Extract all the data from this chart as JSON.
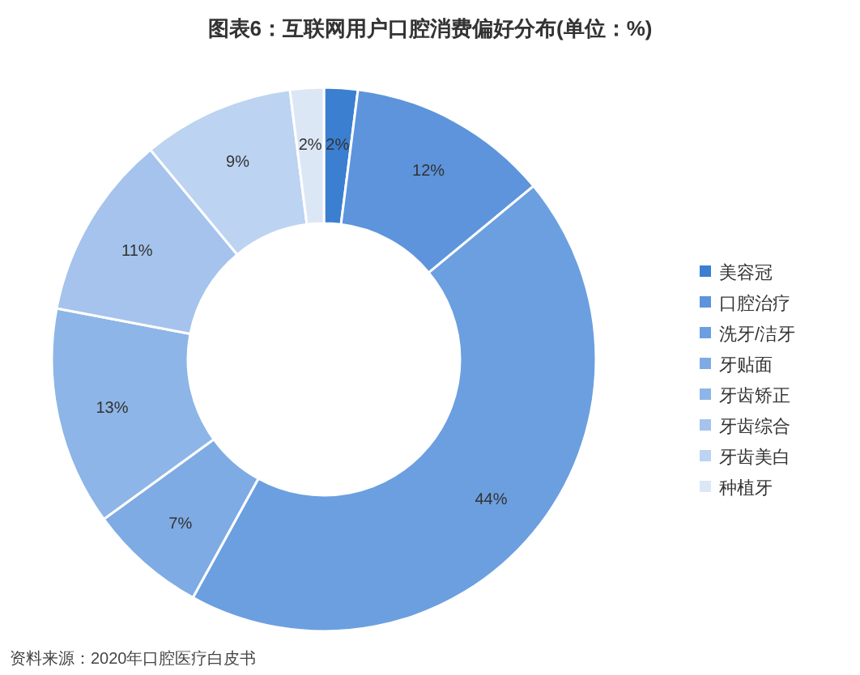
{
  "chart_data": {
    "type": "donut",
    "title": "图表6：互联网用户口腔消费偏好分布(单位：%)",
    "categories": [
      "美容冠",
      "口腔治疗",
      "洗牙/洁牙",
      "牙贴面",
      "牙齿矫正",
      "牙齿综合",
      "牙齿美白",
      "种植牙"
    ],
    "values": [
      2,
      12,
      44,
      7,
      13,
      11,
      9,
      2
    ],
    "value_labels": [
      "2%",
      "12%",
      "44%",
      "7%",
      "13%",
      "11%",
      "9%",
      "2%"
    ],
    "colors": [
      "#3b7fd1",
      "#5d94dc",
      "#6b9fe0",
      "#7eabe4",
      "#8db5e7",
      "#a5c3ec",
      "#bcd3f1",
      "#dce7f6"
    ],
    "legend": "right",
    "annotations": [
      "资料来源：2020年口腔医疗白皮书"
    ]
  }
}
